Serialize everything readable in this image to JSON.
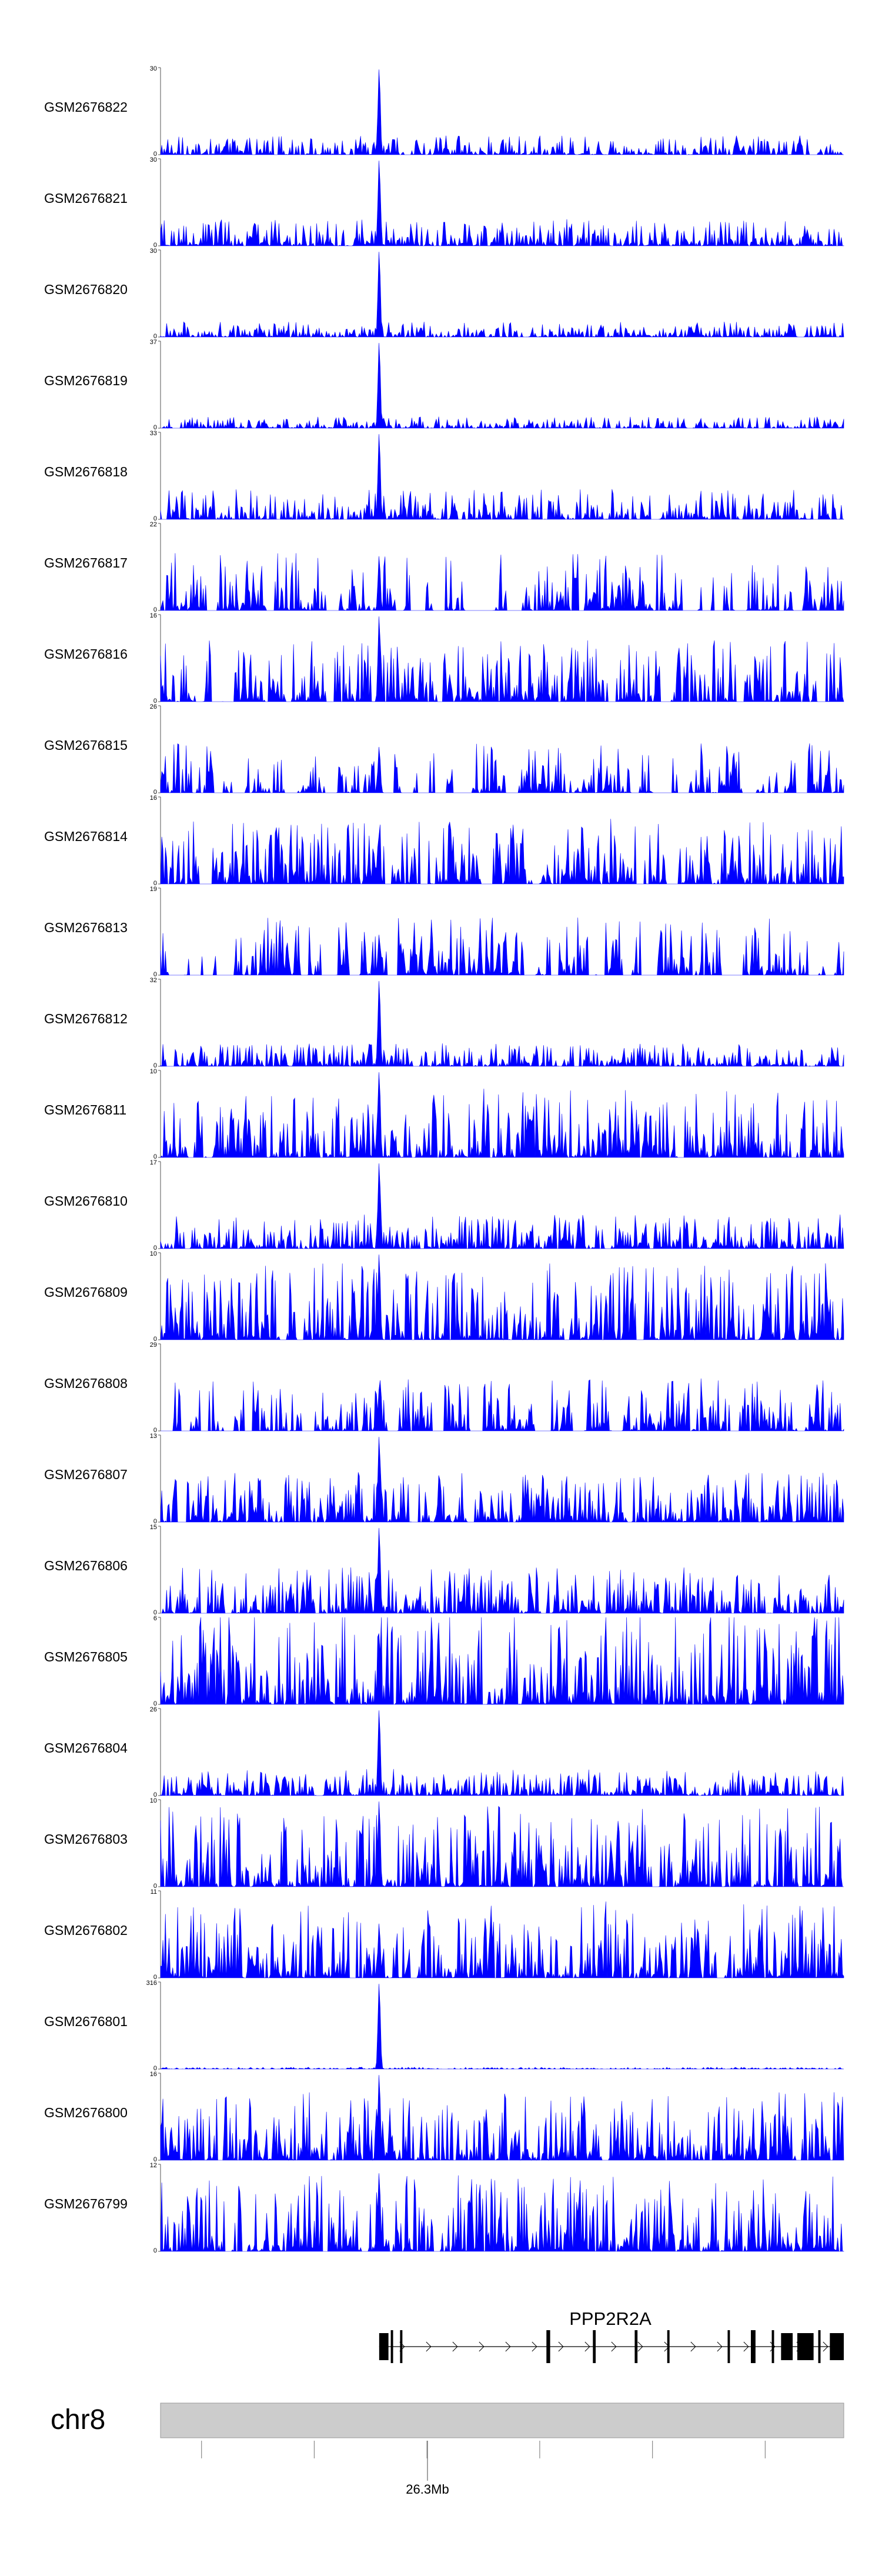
{
  "chart_data": {
    "type": "area",
    "color": "#0000ff",
    "tracks": [
      {
        "name": "GSM2676822",
        "ymax": "30",
        "ymin": "0",
        "peak": 30,
        "base": 0.1,
        "sparse": 0.05
      },
      {
        "name": "GSM2676821",
        "ymax": "30",
        "ymin": "0",
        "peak": 30,
        "base": 0.14,
        "sparse": 0.05
      },
      {
        "name": "GSM2676820",
        "ymax": "30",
        "ymin": "0",
        "peak": 30,
        "base": 0.08,
        "sparse": 0.05
      },
      {
        "name": "GSM2676819",
        "ymax": "37",
        "ymin": "0",
        "peak": 37,
        "base": 0.06,
        "sparse": 0.05
      },
      {
        "name": "GSM2676818",
        "ymax": "33",
        "ymin": "0",
        "peak": 33,
        "base": 0.16,
        "sparse": 0.15
      },
      {
        "name": "GSM2676817",
        "ymax": "22",
        "ymin": "0",
        "peak": 14,
        "base": 0.3,
        "sparse": 0.45
      },
      {
        "name": "GSM2676816",
        "ymax": "16",
        "ymin": "0",
        "peak": 16,
        "base": 0.32,
        "sparse": 0.35
      },
      {
        "name": "GSM2676815",
        "ymax": "26",
        "ymin": "0",
        "peak": 14,
        "base": 0.26,
        "sparse": 0.65
      },
      {
        "name": "GSM2676814",
        "ymax": "16",
        "ymin": "0",
        "peak": 9,
        "base": 0.34,
        "sparse": 0.4
      },
      {
        "name": "GSM2676813",
        "ymax": "19",
        "ymin": "0",
        "peak": 9,
        "base": 0.3,
        "sparse": 0.6
      },
      {
        "name": "GSM2676812",
        "ymax": "32",
        "ymin": "0",
        "peak": 32,
        "base": 0.12,
        "sparse": 0.1
      },
      {
        "name": "GSM2676811",
        "ymax": "10",
        "ymin": "0",
        "peak": 10,
        "base": 0.36,
        "sparse": 0.1
      },
      {
        "name": "GSM2676810",
        "ymax": "17",
        "ymin": "0",
        "peak": 17,
        "base": 0.18,
        "sparse": 0.1
      },
      {
        "name": "GSM2676809",
        "ymax": "10",
        "ymin": "0",
        "peak": 10,
        "base": 0.4,
        "sparse": 0.1
      },
      {
        "name": "GSM2676808",
        "ymax": "29",
        "ymin": "0",
        "peak": 14,
        "base": 0.28,
        "sparse": 0.4
      },
      {
        "name": "GSM2676807",
        "ymax": "13",
        "ymin": "0",
        "peak": 13,
        "base": 0.26,
        "sparse": 0.1
      },
      {
        "name": "GSM2676806",
        "ymax": "15",
        "ymin": "0",
        "peak": 15,
        "base": 0.24,
        "sparse": 0.1
      },
      {
        "name": "GSM2676805",
        "ymax": "6",
        "ymin": "0",
        "peak": 5,
        "base": 0.52,
        "sparse": 0.02
      },
      {
        "name": "GSM2676804",
        "ymax": "26",
        "ymin": "0",
        "peak": 26,
        "base": 0.14,
        "sparse": 0.1
      },
      {
        "name": "GSM2676803",
        "ymax": "10",
        "ymin": "0",
        "peak": 10,
        "base": 0.42,
        "sparse": 0.08
      },
      {
        "name": "GSM2676802",
        "ymax": "11",
        "ymin": "0",
        "peak": 7,
        "base": 0.4,
        "sparse": 0.08
      },
      {
        "name": "GSM2676801",
        "ymax": "316",
        "ymin": "0",
        "peak": 316,
        "base": 0.01,
        "sparse": 0.05
      },
      {
        "name": "GSM2676800",
        "ymax": "16",
        "ymin": "0",
        "peak": 16,
        "base": 0.36,
        "sparse": 0.08
      },
      {
        "name": "GSM2676799",
        "ymax": "12",
        "ymin": "0",
        "peak": 11,
        "base": 0.4,
        "sparse": 0.08
      }
    ],
    "peak_position": 0.32,
    "gene": {
      "name": "PPP2R2A",
      "start": 0.32,
      "end": 1.0,
      "exons": [
        [
          0.0,
          0.02
        ],
        [
          0.025,
          0.03
        ],
        [
          0.045,
          0.05
        ],
        [
          0.36,
          0.368
        ],
        [
          0.46,
          0.466
        ],
        [
          0.55,
          0.556
        ],
        [
          0.62,
          0.625
        ],
        [
          0.75,
          0.755
        ],
        [
          0.8,
          0.81
        ],
        [
          0.845,
          0.85
        ],
        [
          0.865,
          0.89
        ],
        [
          0.9,
          0.935
        ],
        [
          0.945,
          0.95
        ],
        [
          0.97,
          1.0
        ]
      ]
    },
    "chromosome": "chr8",
    "position_label": "26.3Mb",
    "axis_ticks": [
      0.06,
      0.225,
      0.39,
      0.555,
      0.72,
      0.885
    ]
  }
}
